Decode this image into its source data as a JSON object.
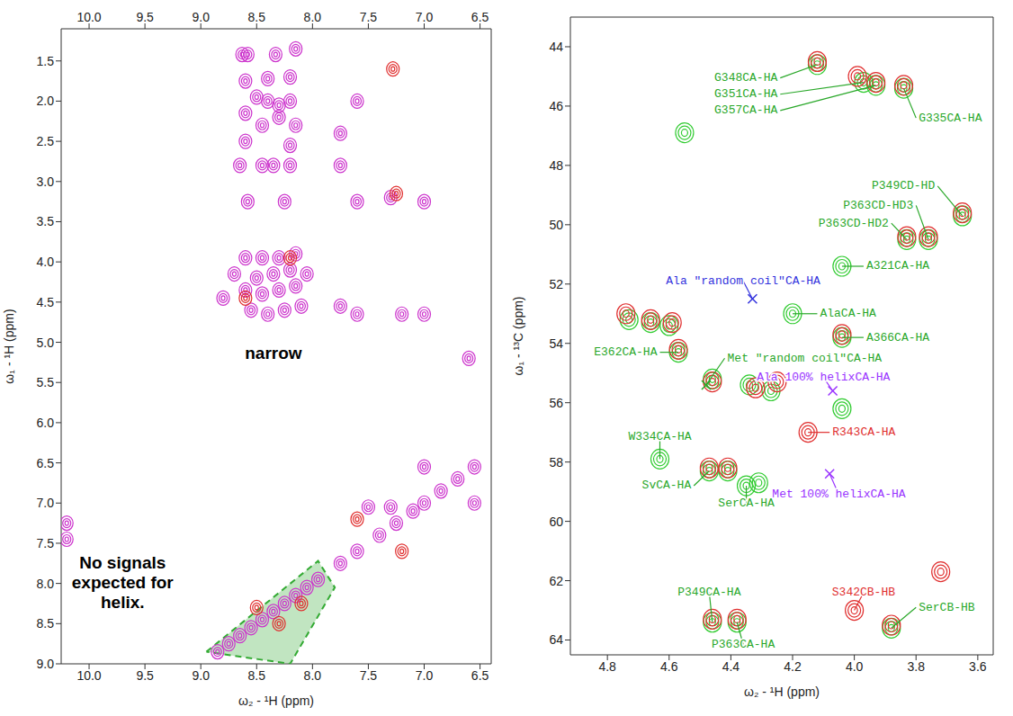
{
  "chart_data": [
    {
      "type": "scatter",
      "xlabel": "ω₂ - ¹H (ppm)",
      "ylabel": "ω₁ - ¹H (ppm)",
      "xlim": [
        10.25,
        6.4
      ],
      "ylim": [
        9.0,
        1.1
      ],
      "xticks": [
        {
          "value": 10,
          "label": "10.0"
        },
        9.5,
        {
          "value": 9,
          "label": "9.0"
        },
        8.5,
        {
          "value": 8,
          "label": "8.0"
        },
        7.5,
        {
          "value": 7,
          "label": "7.0"
        },
        6.5
      ],
      "yticks": [
        1.5,
        {
          "value": 2,
          "label": "2.0"
        },
        2.5,
        {
          "value": 3,
          "label": "3.0"
        },
        3.5,
        {
          "value": 4,
          "label": "4.0"
        },
        4.5,
        {
          "value": 5,
          "label": "5.0"
        },
        5.5,
        {
          "value": 6,
          "label": "6.0"
        },
        6.5,
        {
          "value": 7,
          "label": "7.0"
        },
        7.5,
        {
          "value": 8,
          "label": "8.0"
        },
        8.5,
        {
          "value": 9,
          "label": "9.0"
        }
      ],
      "series": [
        {
          "color": "#cc33cc",
          "marker": "contour",
          "x": [
            8.63,
            8.58,
            8.33,
            8.15,
            8.6,
            8.4,
            8.2,
            8.5,
            8.4,
            8.3,
            8.2,
            8.6,
            8.45,
            8.3,
            8.15,
            8.6,
            8.2,
            8.65,
            8.45,
            8.35,
            8.2,
            7.75,
            7.75,
            7.6,
            8.58,
            8.25,
            7.6,
            7.3,
            7.0,
            8.6,
            8.45,
            8.3,
            8.15,
            8.7,
            8.5,
            8.35,
            8.2,
            8.05,
            8.8,
            8.6,
            8.45,
            8.3,
            8.15,
            8.55,
            8.4,
            8.25,
            8.1,
            7.6,
            7.2,
            7.0,
            7.75,
            10.2,
            10.2,
            6.6,
            8.85,
            8.75,
            8.65,
            8.55,
            8.45,
            8.35,
            8.25,
            8.15,
            8.05,
            7.95,
            7.75,
            7.6,
            7.4,
            7.25,
            7.1,
            7.0,
            6.85,
            6.7,
            6.55,
            6.55,
            7.0,
            7.3,
            7.5
          ],
          "values": [
            1.42,
            1.42,
            1.42,
            1.35,
            1.75,
            1.72,
            1.7,
            1.95,
            2.0,
            2.05,
            2.0,
            2.15,
            2.3,
            2.2,
            2.3,
            2.5,
            2.55,
            2.8,
            2.8,
            2.8,
            2.8,
            2.8,
            2.4,
            2.0,
            3.25,
            3.25,
            3.25,
            3.2,
            3.25,
            3.95,
            3.95,
            3.95,
            3.9,
            4.15,
            4.2,
            4.15,
            4.1,
            4.15,
            4.45,
            4.35,
            4.4,
            4.35,
            4.3,
            4.6,
            4.65,
            4.6,
            4.55,
            4.65,
            4.65,
            4.65,
            4.55,
            7.25,
            7.45,
            5.2,
            8.85,
            8.75,
            8.65,
            8.55,
            8.45,
            8.35,
            8.25,
            8.15,
            8.05,
            7.95,
            7.75,
            7.6,
            7.4,
            7.25,
            7.1,
            7.0,
            6.85,
            6.7,
            6.55,
            7.0,
            6.55,
            7.05,
            7.05
          ]
        },
        {
          "color": "#e03030",
          "marker": "contour",
          "x": [
            7.28,
            7.25,
            8.3,
            8.5,
            8.1,
            7.6,
            7.2,
            8.6,
            8.2
          ],
          "values": [
            1.6,
            3.15,
            8.5,
            8.3,
            8.25,
            7.2,
            7.6,
            4.45,
            3.95
          ]
        }
      ],
      "region": {
        "color": "#33aa33",
        "x": [
          8.95,
          7.95,
          7.8,
          8.2,
          8.95
        ],
        "values": [
          8.85,
          7.72,
          8.05,
          9.0,
          8.85
        ]
      },
      "annotations": [
        {
          "text": "narrow",
          "at": [
            8.35,
            5.15
          ],
          "color": "#000000"
        },
        {
          "text": "No signals expected for helix.",
          "at": [
            9.7,
            8.0
          ],
          "color": "#000000"
        }
      ]
    },
    {
      "type": "scatter",
      "xlabel": "ω₂ - ¹H (ppm)",
      "ylabel": "ω₁ - ¹³C (ppm)",
      "xlim": [
        4.92,
        3.55
      ],
      "ylim": [
        64.5,
        43
      ],
      "xticks": [
        4.8,
        4.6,
        4.4,
        4.2,
        {
          "value": 4,
          "label": "4.0"
        },
        3.8,
        3.6
      ],
      "yticks": [
        44,
        46,
        48,
        50,
        52,
        54,
        56,
        58,
        60,
        62,
        64
      ],
      "series": [
        {
          "color": "#33cc33",
          "marker": "contour",
          "x": [
            4.12,
            3.97,
            3.93,
            3.84,
            3.65,
            3.76,
            3.83,
            4.04,
            4.2,
            4.04,
            4.57,
            4.63,
            4.47,
            4.41,
            4.35,
            4.31,
            4.46,
            4.38,
            3.88,
            4.73,
            4.66,
            4.6,
            4.46,
            4.34,
            4.27,
            4.04,
            4.55
          ],
          "values": [
            44.6,
            45.2,
            45.3,
            45.4,
            49.7,
            50.5,
            50.5,
            51.4,
            53.0,
            53.8,
            54.3,
            57.9,
            58.3,
            58.3,
            58.8,
            58.7,
            63.4,
            63.4,
            63.6,
            53.2,
            53.3,
            53.4,
            55.2,
            55.4,
            55.6,
            56.2,
            46.9
          ]
        },
        {
          "color": "#e03030",
          "marker": "contour",
          "x": [
            4.12,
            3.99,
            3.93,
            3.84,
            3.76,
            3.83,
            3.65,
            4.04,
            4.57,
            4.74,
            4.66,
            4.59,
            4.46,
            4.32,
            4.25,
            4.15,
            4.47,
            4.41,
            4.46,
            4.38,
            4.0,
            3.72,
            3.88
          ],
          "values": [
            44.5,
            45.0,
            45.2,
            45.3,
            50.4,
            50.4,
            49.6,
            53.7,
            54.2,
            53.0,
            53.2,
            53.3,
            55.3,
            55.5,
            55.3,
            57.0,
            58.2,
            58.2,
            63.3,
            63.3,
            63.0,
            61.7,
            63.5
          ]
        }
      ],
      "annotations": [
        {
          "text": "G348CA-HA",
          "x": 4.12,
          "y": 44.6,
          "at": [
            4.24,
            45.05
          ],
          "color": "#2aa82a"
        },
        {
          "text": "G351CA-HA",
          "x": 3.97,
          "y": 45.2,
          "at": [
            4.24,
            45.6
          ],
          "color": "#2aa82a"
        },
        {
          "text": "G357CA-HA",
          "x": 3.93,
          "y": 45.3,
          "at": [
            4.24,
            46.15
          ],
          "color": "#2aa82a"
        },
        {
          "text": "G335CA-HA",
          "x": 3.84,
          "y": 45.4,
          "at": [
            3.8,
            46.4
          ],
          "color": "#2aa82a"
        },
        {
          "text": "P349CD-HD",
          "x": 3.65,
          "y": 49.7,
          "at": [
            3.73,
            48.7
          ],
          "color": "#2aa82a"
        },
        {
          "text": "P363CD-HD3",
          "x": 3.76,
          "y": 50.5,
          "at": [
            3.8,
            49.35
          ],
          "color": "#2aa82a"
        },
        {
          "text": "P363CD-HD2",
          "x": 3.83,
          "y": 50.5,
          "at": [
            3.88,
            49.95
          ],
          "color": "#2aa82a"
        },
        {
          "text": "A321CA-HA",
          "x": 4.04,
          "y": 51.4,
          "at": [
            3.97,
            51.4
          ],
          "color": "#2aa82a"
        },
        {
          "text": "Ala \"random coil\"CA-HA",
          "x": 4.33,
          "y": 52.5,
          "at": [
            4.36,
            51.9
          ],
          "color": "#3333dd",
          "marker": "x"
        },
        {
          "text": "AlaCA-HA",
          "x": 4.2,
          "y": 53.0,
          "at": [
            4.12,
            53.0
          ],
          "color": "#2aa82a"
        },
        {
          "text": "A366CA-HA",
          "x": 4.04,
          "y": 53.8,
          "at": [
            3.97,
            53.8
          ],
          "color": "#2aa82a"
        },
        {
          "text": "E362CA-HA",
          "x": 4.57,
          "y": 54.3,
          "at": [
            4.63,
            54.3
          ],
          "color": "#2aa82a"
        },
        {
          "text": "Met \"random coil\"CA-HA",
          "x": 4.48,
          "y": 55.4,
          "at": [
            4.42,
            54.5
          ],
          "color": "#2aa82a",
          "marker": "x"
        },
        {
          "text": "Ala 100% helixCA-HA",
          "x": 4.07,
          "y": 55.6,
          "at": [
            4.1,
            55.15
          ],
          "color": "#9933ff",
          "marker": "x"
        },
        {
          "text": "R343CA-HA",
          "x": 4.15,
          "y": 57.0,
          "at": [
            4.08,
            57.0
          ],
          "color": "#e03030"
        },
        {
          "text": "W334CA-HA",
          "x": 4.63,
          "y": 57.9,
          "at": [
            4.63,
            57.15
          ],
          "color": "#2aa82a"
        },
        {
          "text": "SvCA-HA",
          "x": 4.47,
          "y": 58.3,
          "at": [
            4.52,
            58.8
          ],
          "color": "#2aa82a"
        },
        {
          "text": "Met 100% helixCA-HA",
          "x": 4.08,
          "y": 58.4,
          "at": [
            4.05,
            59.1
          ],
          "color": "#9933ff",
          "marker": "x"
        },
        {
          "text": "SerCA-HA",
          "x": 4.35,
          "y": 58.8,
          "at": [
            4.35,
            59.4
          ],
          "color": "#2aa82a"
        },
        {
          "text": "P349CA-HA",
          "x": 4.46,
          "y": 63.4,
          "at": [
            4.47,
            62.4
          ],
          "color": "#2aa82a"
        },
        {
          "text": "P363CA-HA",
          "x": 4.38,
          "y": 63.4,
          "at": [
            4.36,
            64.15
          ],
          "color": "#2aa82a"
        },
        {
          "text": "S342CB-HB",
          "x": 4.0,
          "y": 63.0,
          "at": [
            3.97,
            62.4
          ],
          "color": "#e03030"
        },
        {
          "text": "SerCB-HB",
          "x": 3.88,
          "y": 63.6,
          "at": [
            3.8,
            62.9
          ],
          "color": "#2aa82a"
        }
      ]
    }
  ]
}
